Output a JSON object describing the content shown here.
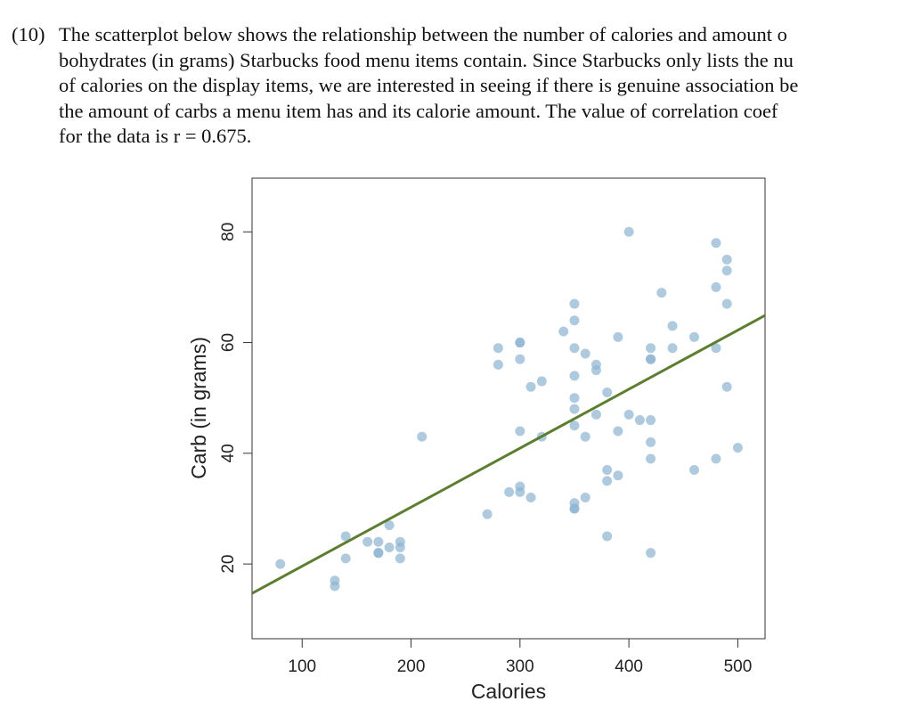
{
  "question": {
    "number": "(10)",
    "lines": [
      "The scatterplot below shows the relationship between the number of calories and amount o",
      "bohydrates (in grams) Starbucks food menu items contain. Since Starbucks only lists the nu",
      "of calories on the display items, we are interested in seeing if there is genuine association be",
      "the amount of carbs a menu item has and its calorie amount. The value of correlation coef",
      "for the data is r = 0.675."
    ]
  },
  "chart_data": {
    "type": "scatter",
    "x_label": "Calories",
    "y_label": "Carb (in grams)",
    "xlim": [
      54,
      525
    ],
    "ylim": [
      6.5,
      89.7
    ],
    "xticks": [
      100,
      200,
      300,
      400,
      500
    ],
    "yticks": [
      20,
      40,
      60,
      80
    ],
    "color": "#8fb5d2",
    "x": [
      80,
      130,
      130,
      140,
      140,
      160,
      170,
      170,
      170,
      180,
      180,
      190,
      190,
      190,
      210,
      270,
      280,
      280,
      290,
      300,
      300,
      300,
      300,
      300,
      300,
      310,
      310,
      320,
      320,
      340,
      350,
      350,
      350,
      350,
      350,
      350,
      350,
      350,
      350,
      350,
      360,
      360,
      360,
      370,
      370,
      370,
      380,
      380,
      380,
      380,
      390,
      390,
      390,
      400,
      400,
      410,
      420,
      420,
      420,
      420,
      420,
      420,
      420,
      430,
      440,
      440,
      460,
      460,
      480,
      480,
      480,
      480,
      490,
      490,
      490,
      490,
      500
    ],
    "values": [
      20,
      17,
      16,
      25,
      21,
      24,
      24,
      22,
      22,
      27,
      23,
      24,
      23,
      21,
      43,
      29,
      59,
      56,
      33,
      60,
      60,
      57,
      44,
      34,
      33,
      32,
      52,
      53,
      43,
      62,
      67,
      64,
      59,
      54,
      50,
      48,
      45,
      31,
      30,
      30,
      58,
      43,
      32,
      56,
      55,
      47,
      51,
      37,
      35,
      25,
      61,
      44,
      36,
      80,
      47,
      46,
      59,
      57,
      57,
      46,
      42,
      39,
      22,
      69,
      63,
      59,
      61,
      37,
      78,
      70,
      59,
      39,
      75,
      73,
      67,
      52,
      41
    ],
    "fit_line": {
      "x": [
        54,
        525
      ],
      "y": [
        14.7,
        64.9
      ],
      "color": "#5b7f2f"
    }
  }
}
